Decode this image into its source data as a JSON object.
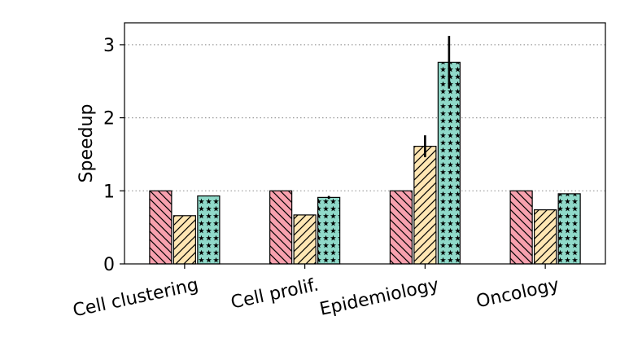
{
  "chart_data": {
    "type": "bar",
    "ylabel": "Speedup",
    "xlabel": "",
    "ylim": [
      0,
      3.3
    ],
    "yticks": [
      0,
      1,
      2,
      3
    ],
    "grid": "y-dotted",
    "categories": [
      "Cell clustering",
      "Cell prolif.",
      "Epidemiology",
      "Oncology"
    ],
    "series": [
      {
        "color": "#f7a1ae",
        "hatch": "backslash",
        "values": [
          1.0,
          1.0,
          1.0,
          1.0
        ],
        "errors": [
          0,
          0,
          0,
          0
        ]
      },
      {
        "color": "#ffe6b3",
        "hatch": "slash",
        "values": [
          0.66,
          0.67,
          1.61,
          0.74
        ],
        "errors": [
          0,
          0,
          0.15,
          0
        ]
      },
      {
        "color": "#8fd9c9",
        "hatch": "stars",
        "values": [
          0.93,
          0.91,
          2.76,
          0.96
        ],
        "errors": [
          0,
          0.02,
          0.36,
          0
        ]
      }
    ]
  }
}
